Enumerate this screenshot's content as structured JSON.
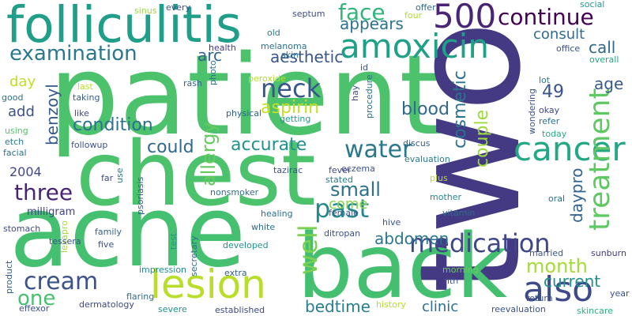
{
  "words": [
    {
      "text": "patient",
      "color": "#4cc26c"
    },
    {
      "text": "two",
      "color": "#443a83"
    },
    {
      "text": "chest",
      "color": "#4cc26c"
    },
    {
      "text": "acne",
      "color": "#45bf70"
    },
    {
      "text": "back",
      "color": "#44bf70"
    },
    {
      "text": "folliculitis",
      "color": "#1f9e89"
    },
    {
      "text": "lesion",
      "color": "#b8de29"
    },
    {
      "text": "500",
      "color": "#482576"
    },
    {
      "text": "amoxicin",
      "color": "#1fa187"
    },
    {
      "text": "cancer",
      "color": "#22a884"
    },
    {
      "text": "also",
      "color": "#3e4a89"
    },
    {
      "text": "face",
      "color": "#31b57b"
    },
    {
      "text": "continue",
      "color": "#440154"
    },
    {
      "text": "examination",
      "color": "#2a788e"
    },
    {
      "text": "appears",
      "color": "#2c728e"
    },
    {
      "text": "consult",
      "color": "#2e6d8e"
    },
    {
      "text": "neck",
      "color": "#39568c"
    },
    {
      "text": "aesthetic",
      "color": "#3a548c"
    },
    {
      "text": "arc",
      "color": "#33638d"
    },
    {
      "text": "call",
      "color": "#31688e"
    },
    {
      "text": "treatment",
      "color": "#5ec962"
    },
    {
      "text": "water",
      "color": "#2a788e"
    },
    {
      "text": "medication",
      "color": "#3f4788"
    },
    {
      "text": "cream",
      "color": "#3b528b"
    },
    {
      "text": "past",
      "color": "#23898e"
    },
    {
      "text": "three",
      "color": "#482475"
    },
    {
      "text": "small",
      "color": "#2d708e"
    },
    {
      "text": "well",
      "color": "#7ad151"
    },
    {
      "text": "month",
      "color": "#a5db36"
    },
    {
      "text": "one",
      "color": "#48c16e"
    },
    {
      "text": "cosmetic",
      "color": "#2c728e"
    },
    {
      "text": "blood",
      "color": "#31688e"
    },
    {
      "text": "49",
      "color": "#3a538b"
    },
    {
      "text": "age",
      "color": "#38588c"
    },
    {
      "text": "couple",
      "color": "#9bd93c"
    },
    {
      "text": "allergy",
      "color": "#65cb5e"
    },
    {
      "text": "aspirin",
      "color": "#c5e021"
    },
    {
      "text": "condition",
      "color": "#2c728e"
    },
    {
      "text": "benzoyl",
      "color": "#38588c"
    },
    {
      "text": "accurate",
      "color": "#20928c"
    },
    {
      "text": "could",
      "color": "#30698e"
    },
    {
      "text": "abdomen",
      "color": "#2b758e"
    },
    {
      "text": "daypro",
      "color": "#33638d"
    },
    {
      "text": "current",
      "color": "#21918c"
    },
    {
      "text": "clinic",
      "color": "#2e6e8e"
    },
    {
      "text": "bedtime",
      "color": "#287d8e"
    },
    {
      "text": "come",
      "color": "#86d549"
    },
    {
      "text": "add",
      "color": "#3b528b"
    },
    {
      "text": "day",
      "color": "#bddf26"
    },
    {
      "text": "2004",
      "color": "#3e4a89"
    },
    {
      "text": "milligram",
      "color": "#414487"
    },
    {
      "text": "every",
      "color": "#3b528b"
    },
    {
      "text": "sinus",
      "color": "#9bd93c"
    },
    {
      "text": "photo",
      "color": "#2c728e"
    },
    {
      "text": "septum",
      "color": "#3e4989"
    },
    {
      "text": "offer",
      "color": "#2e6d8e"
    },
    {
      "text": "four",
      "color": "#b0dd2f"
    },
    {
      "text": "social",
      "color": "#1e9b8a"
    },
    {
      "text": "office",
      "color": "#3b528b"
    },
    {
      "text": "overall",
      "color": "#22a785"
    },
    {
      "text": "old",
      "color": "#2a778e"
    },
    {
      "text": "health",
      "color": "#443983"
    },
    {
      "text": "melanoma",
      "color": "#2c728e"
    },
    {
      "text": "skin",
      "color": "#2a788e"
    },
    {
      "text": "id",
      "color": "#3b528b"
    },
    {
      "text": "peroxide",
      "color": "#b5de2b"
    },
    {
      "text": "rash",
      "color": "#31678e"
    },
    {
      "text": "physical",
      "color": "#33638d"
    },
    {
      "text": "getting",
      "color": "#1f9a8a"
    },
    {
      "text": "last",
      "color": "#b8de29"
    },
    {
      "text": "taking",
      "color": "#34618d"
    },
    {
      "text": "like",
      "color": "#3e4989"
    },
    {
      "text": "good",
      "color": "#2d718e"
    },
    {
      "text": "using",
      "color": "#52c569"
    },
    {
      "text": "etch",
      "color": "#2a788e"
    },
    {
      "text": "facial",
      "color": "#2d708e"
    },
    {
      "text": "followup",
      "color": "#3b528b"
    },
    {
      "text": "hay",
      "color": "#3e4989"
    },
    {
      "text": "procedure",
      "color": "#2d708e"
    },
    {
      "text": "wondering",
      "color": "#3a548c"
    },
    {
      "text": "lot",
      "color": "#2a788e"
    },
    {
      "text": "okay",
      "color": "#3f4788"
    },
    {
      "text": "refer",
      "color": "#2d718e"
    },
    {
      "text": "today",
      "color": "#29af7f"
    },
    {
      "text": "discus",
      "color": "#34608d"
    },
    {
      "text": "eczema",
      "color": "#3b528b"
    },
    {
      "text": "evaluation",
      "color": "#287c8e"
    },
    {
      "text": "fever",
      "color": "#3f4788"
    },
    {
      "text": "stated",
      "color": "#2a788e"
    },
    {
      "text": "plus",
      "color": "#b5de2b"
    },
    {
      "text": "tazirac",
      "color": "#3b528b"
    },
    {
      "text": "far",
      "color": "#3e4a89"
    },
    {
      "text": "use",
      "color": "#2a788e"
    },
    {
      "text": "psoriasis",
      "color": "#35608d"
    },
    {
      "text": "mother",
      "color": "#23888e"
    },
    {
      "text": "female",
      "color": "#3b528b"
    },
    {
      "text": "vitamin",
      "color": "#2e6d8e"
    },
    {
      "text": "nonsmoker",
      "color": "#2c728e"
    },
    {
      "text": "healing",
      "color": "#2e6e8e"
    },
    {
      "text": "hive",
      "color": "#3b528b"
    },
    {
      "text": "oral",
      "color": "#2d718e"
    },
    {
      "text": "stomach",
      "color": "#3e4989"
    },
    {
      "text": "lexapro",
      "color": "#9fda3a"
    },
    {
      "text": "family",
      "color": "#33638d"
    },
    {
      "text": "five",
      "color": "#3b528b"
    },
    {
      "text": "test",
      "color": "#1f988b"
    },
    {
      "text": "ditropan",
      "color": "#3b528b"
    },
    {
      "text": "white",
      "color": "#2e6e8e"
    },
    {
      "text": "developed",
      "color": "#21918c"
    },
    {
      "text": "married",
      "color": "#3b528b"
    },
    {
      "text": "sunburn",
      "color": "#443983"
    },
    {
      "text": "secretary",
      "color": "#2e6e8e"
    },
    {
      "text": "impression",
      "color": "#238a8d"
    },
    {
      "text": "extra",
      "color": "#34608d"
    },
    {
      "text": "tessera",
      "color": "#3b528b"
    },
    {
      "text": "flaring",
      "color": "#2e6e8e"
    },
    {
      "text": "product",
      "color": "#34608d"
    },
    {
      "text": "morning",
      "color": "#6ccd5a"
    },
    {
      "text": "nth",
      "color": "#3b528b"
    },
    {
      "text": "return",
      "color": "#3b528b"
    },
    {
      "text": "year",
      "color": "#3b528b"
    },
    {
      "text": "dermatology",
      "color": "#3e4989"
    },
    {
      "text": "history",
      "color": "#b5de2b"
    },
    {
      "text": "effexor",
      "color": "#3b528b"
    },
    {
      "text": "severe",
      "color": "#21918c"
    },
    {
      "text": "established",
      "color": "#3e4989"
    },
    {
      "text": "reevaluation",
      "color": "#3b528b"
    },
    {
      "text": "skincare",
      "color": "#29af7f"
    }
  ]
}
